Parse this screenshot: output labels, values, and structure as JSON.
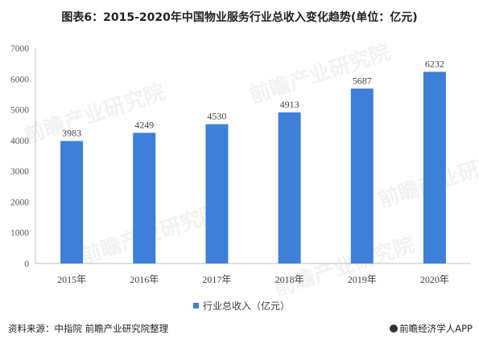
{
  "title": "图表6：2015-2020年中国物业服务行业总收入变化趋势(单位：亿元)",
  "chart_data": {
    "type": "bar",
    "categories": [
      "2015年",
      "2016年",
      "2017年",
      "2018年",
      "2019年",
      "2020年"
    ],
    "series": [
      {
        "name": "行业总收入（亿元）",
        "values": [
          3983,
          4249,
          4530,
          4913,
          5687,
          6232
        ]
      }
    ],
    "yticks": [
      "0",
      "1000",
      "2000",
      "3000",
      "4000",
      "5000",
      "6000",
      "7000"
    ],
    "ylim": [
      0,
      7000
    ],
    "grid": false,
    "legend_position": "bottom",
    "bar_color": "#3d7fd9"
  },
  "watermark": "前瞻产业研究院",
  "footer": {
    "source": "资料来源：中指院 前瞻产业研究院整理",
    "credit": "前瞻经济学人APP"
  }
}
